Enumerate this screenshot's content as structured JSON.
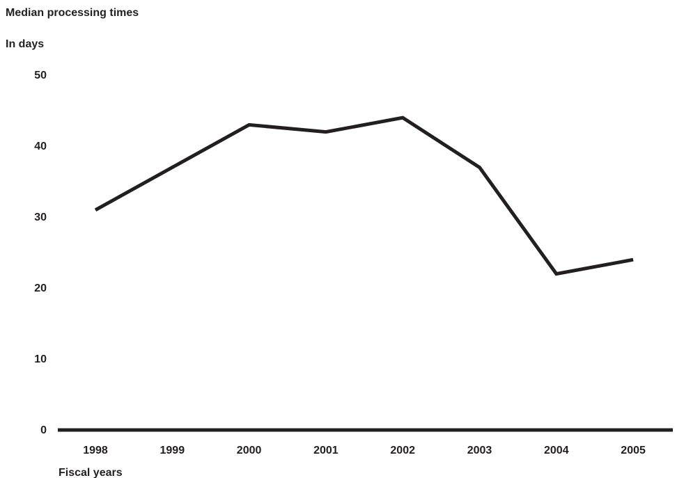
{
  "chart_data": {
    "type": "line",
    "title": "Median processing times",
    "ylabel": "In days",
    "xlabel": "Fiscal years",
    "x": [
      "1998",
      "1999",
      "2000",
      "2001",
      "2002",
      "2003",
      "2004",
      "2005"
    ],
    "ylim": [
      0,
      50
    ],
    "yticks": [
      0,
      10,
      20,
      30,
      40,
      50
    ],
    "grid": false,
    "legend": "none",
    "series": [
      {
        "values": [
          31,
          37,
          43,
          42,
          44,
          37,
          22,
          24
        ]
      }
    ],
    "colors": {
      "line": "#231f20",
      "axis": "#231f20",
      "text": "#231f20"
    }
  }
}
